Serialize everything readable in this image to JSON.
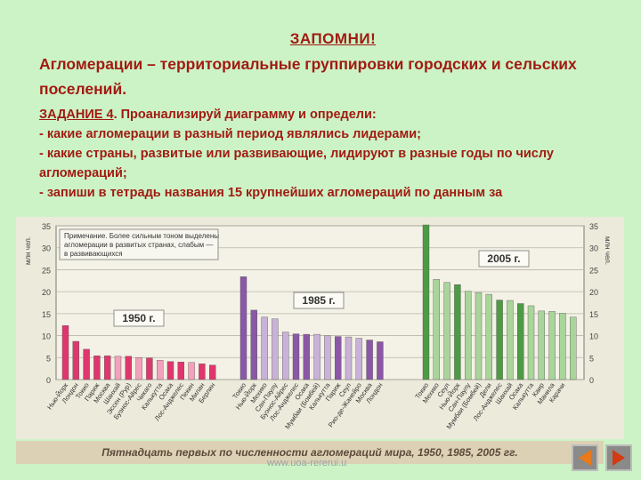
{
  "slide": {
    "title": "ЗАПОМНИ!",
    "definition": "Агломерации – территориальные группировки городских и сельских поселений.",
    "task_label": "ЗАДАНИЕ 4",
    "task_intro": ". Проанализируй диаграмму и определи:",
    "task_items": [
      "- какие агломерации в разный период являлись лидерами;",
      "- какие страны, развитые или развивающие, лидируют в разные годы по числу агломераций;",
      "- запиши в тетрадь названия 15 крупнейших агломераций по данным за"
    ]
  },
  "chart_data": {
    "type": "bar",
    "ylabel": "млн чел.",
    "ylim": [
      0,
      35
    ],
    "yticks": [
      "0",
      "5",
      "10",
      "15",
      "20",
      "25",
      "30",
      "35"
    ],
    "note": "Примечание. Более сильным тоном выделены агломерации в развитых странах, слабым — в развивающихся",
    "caption": "Пятнадцать первых по численности агломераций мира, 1950, 1985, 2005 гг.",
    "grid": true,
    "groups": [
      {
        "name": "1950 г.",
        "color_dark": "#e0366e",
        "color_light": "#f4a0bc",
        "categories": [
          "Нью-Йорк",
          "Лондон",
          "Токио",
          "Париж",
          "Москва",
          "Шанхай",
          "Эссен (Рур)",
          "Буэнос-Айрес",
          "Чикаго",
          "Калькутта",
          "Осака",
          "Лос-Анджелес",
          "Пекин",
          "Милан",
          "Берлин"
        ],
        "values": [
          12.3,
          8.7,
          6.9,
          5.4,
          5.4,
          5.3,
          5.3,
          5.0,
          4.9,
          4.4,
          4.1,
          4.0,
          3.9,
          3.6,
          3.3
        ],
        "developed": [
          true,
          true,
          true,
          true,
          true,
          false,
          true,
          false,
          true,
          false,
          true,
          true,
          false,
          true,
          true
        ]
      },
      {
        "name": "1985 г.",
        "color_dark": "#8a58a6",
        "color_light": "#c9b2d8",
        "categories": [
          "Токио",
          "Нью-Йорк",
          "Мехико",
          "Сан-Паулу",
          "Буэнос-Айрес",
          "Лос-Анджелес",
          "Осака",
          "Мумбаи (Бомбей)",
          "Калькутта",
          "Париж",
          "Сеул",
          "Рио-де-Жанейро",
          "Москва",
          "Лондон",
          ""
        ],
        "values": [
          23.4,
          15.8,
          14.2,
          13.8,
          10.8,
          10.4,
          10.3,
          10.3,
          10.0,
          9.8,
          9.7,
          9.4,
          9.0,
          8.6,
          0
        ],
        "developed": [
          true,
          true,
          false,
          false,
          false,
          true,
          true,
          false,
          false,
          true,
          false,
          false,
          true,
          true,
          false
        ]
      },
      {
        "name": "2005 г.",
        "color_dark": "#4d9b43",
        "color_light": "#a9d59b",
        "categories": [
          "Токио",
          "Мехико",
          "Сеул",
          "Нью-Йорк",
          "Сан-Паулу",
          "Мумбаи (Бомбей)",
          "Дели",
          "Лос-Анджелес",
          "Шанхай",
          "Осака",
          "Калькутта",
          "Каир",
          "Манила",
          "Карачи",
          ""
        ],
        "values": [
          35.2,
          22.8,
          22.1,
          21.6,
          20.1,
          19.8,
          19.4,
          18.1,
          18.0,
          17.3,
          16.8,
          15.6,
          15.5,
          15.1,
          14.2
        ],
        "developed": [
          true,
          false,
          false,
          true,
          false,
          false,
          false,
          true,
          false,
          true,
          false,
          false,
          false,
          false,
          false
        ]
      }
    ]
  },
  "footer": {
    "url": "www.uoa-rererui.u"
  },
  "colors": {
    "background": "#ccf3c6",
    "text": "#a11b12",
    "chart_bg": "#eceadb"
  },
  "icons": {
    "prev": "triangle-left-icon",
    "next": "triangle-right-icon"
  }
}
